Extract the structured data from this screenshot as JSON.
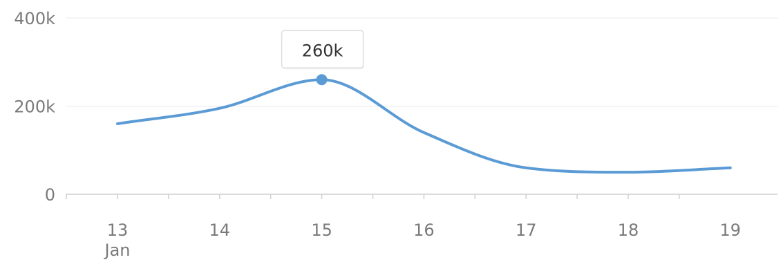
{
  "chart_data": {
    "type": "line",
    "x": [
      "13",
      "14",
      "15",
      "16",
      "17",
      "18",
      "19"
    ],
    "x_sub_label": "Jan",
    "series": [
      {
        "values": [
          160000,
          195000,
          260000,
          140000,
          60000,
          50000,
          60000
        ],
        "color": "#5b9bd5"
      }
    ],
    "y_ticks": [
      "0",
      "200k",
      "400k"
    ],
    "ylim": [
      0,
      400000
    ],
    "grid": true,
    "tooltip": {
      "index": 2,
      "text": "260k"
    }
  }
}
